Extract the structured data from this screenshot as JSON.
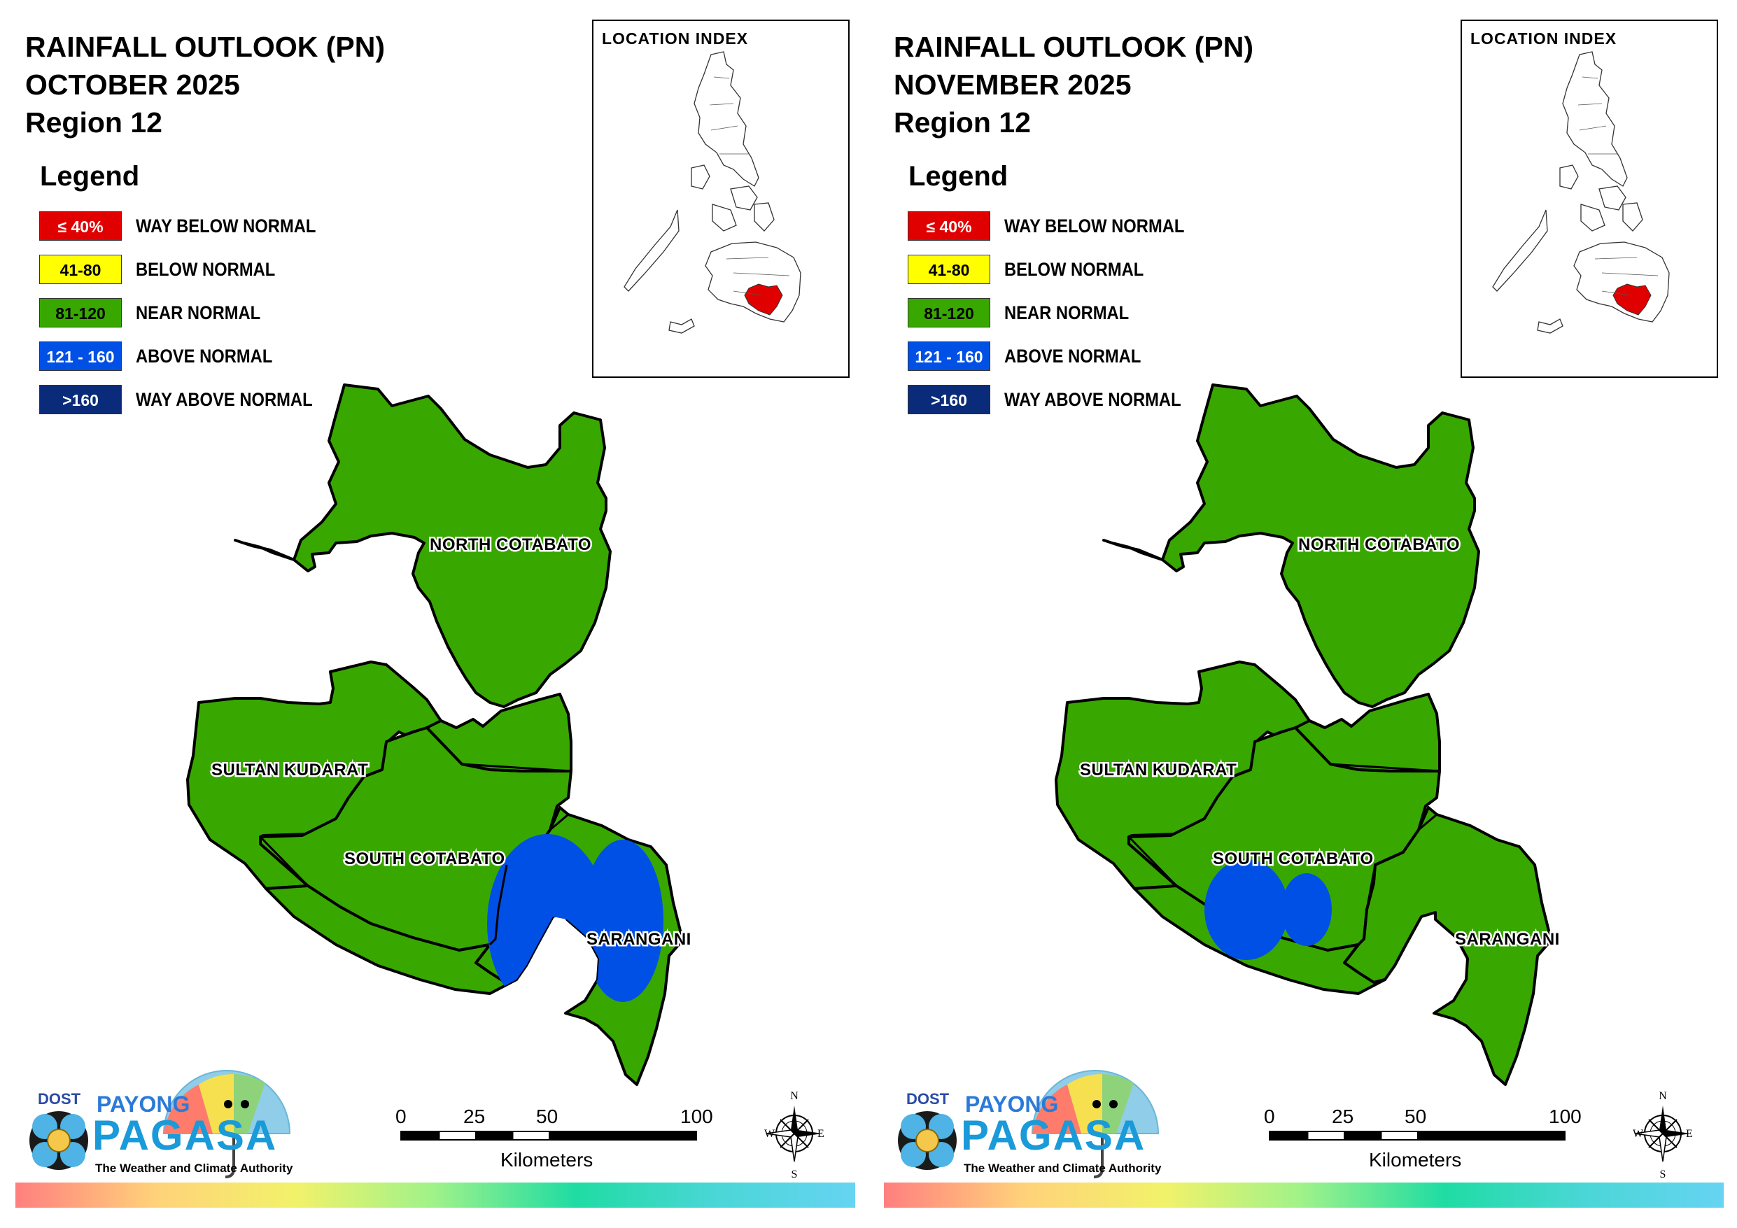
{
  "panels": [
    {
      "title_line1": "RAINFALL OUTLOOK (PN)",
      "title_line2": "OCTOBER 2025",
      "title_line3": "Region 12",
      "legend_title": "Legend",
      "legend": [
        {
          "range": "≤ 40%",
          "label": "WAY BELOW NORMAL",
          "color": "#e00000",
          "text_color": "#ffffff"
        },
        {
          "range": "41-80",
          "label": "BELOW NORMAL",
          "color": "#ffff00",
          "text_color": "#000000"
        },
        {
          "range": "81-120",
          "label": "NEAR NORMAL",
          "color": "#38a800",
          "text_color": "#000000"
        },
        {
          "range": "121 - 160",
          "label": "ABOVE NORMAL",
          "color": "#0050e6",
          "text_color": "#ffffff"
        },
        {
          "range": ">160",
          "label": "WAY ABOVE NORMAL",
          "color": "#0a2a7a",
          "text_color": "#ffffff"
        }
      ],
      "location_index_title": "LOCATION INDEX",
      "provinces": [
        "NORTH COTABATO",
        "SULTAN KUDARAT",
        "SOUTH COTABATO",
        "SARANGANI"
      ],
      "above_normal_area": "large",
      "scale": {
        "ticks": [
          "0",
          "25",
          "50",
          "100"
        ],
        "unit": "Kilometers"
      },
      "compass": {
        "n": "N",
        "s": "S",
        "e": "E",
        "w": "W"
      },
      "logo": {
        "dost": "DOST",
        "payong": "PAYONG",
        "pagasa": "PAGASA",
        "tagline": "The Weather and Climate Authority"
      }
    },
    {
      "title_line1": "RAINFALL OUTLOOK (PN)",
      "title_line2": "NOVEMBER 2025",
      "title_line3": "Region 12",
      "legend_title": "Legend",
      "legend": [
        {
          "range": "≤ 40%",
          "label": "WAY BELOW NORMAL",
          "color": "#e00000",
          "text_color": "#ffffff"
        },
        {
          "range": "41-80",
          "label": "BELOW NORMAL",
          "color": "#ffff00",
          "text_color": "#000000"
        },
        {
          "range": "81-120",
          "label": "NEAR NORMAL",
          "color": "#38a800",
          "text_color": "#000000"
        },
        {
          "range": "121 - 160",
          "label": "ABOVE NORMAL",
          "color": "#0050e6",
          "text_color": "#ffffff"
        },
        {
          "range": ">160",
          "label": "WAY ABOVE NORMAL",
          "color": "#0a2a7a",
          "text_color": "#ffffff"
        }
      ],
      "location_index_title": "LOCATION INDEX",
      "provinces": [
        "NORTH COTABATO",
        "SULTAN KUDARAT",
        "SOUTH COTABATO",
        "SARANGANI"
      ],
      "above_normal_area": "small",
      "scale": {
        "ticks": [
          "0",
          "25",
          "50",
          "100"
        ],
        "unit": "Kilometers"
      },
      "compass": {
        "n": "N",
        "s": "S",
        "e": "E",
        "w": "W"
      },
      "logo": {
        "dost": "DOST",
        "payong": "PAYONG",
        "pagasa": "PAGASA",
        "tagline": "The Weather and Climate Authority"
      }
    }
  ],
  "colors": {
    "near_normal": "#38a800",
    "above_normal": "#0050e6",
    "highlight_region": "#e00000"
  }
}
